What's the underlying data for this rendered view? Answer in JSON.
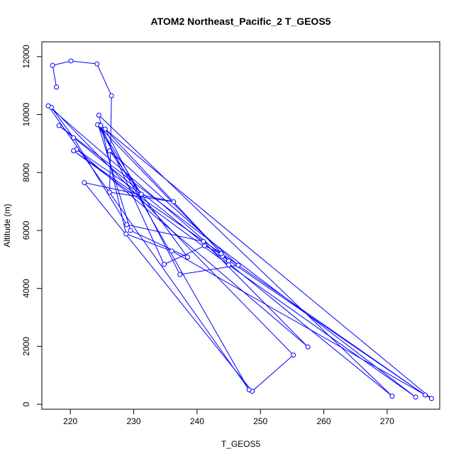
{
  "chart_data": {
    "type": "line",
    "title": "ATOM2 Northeast_Pacific_2 T_GEOS5",
    "xlabel": "T_GEOS5",
    "ylabel": "Altitude (m)",
    "xlim": [
      215.5,
      278.3
    ],
    "ylim": [
      -170,
      12510
    ],
    "xticks": [
      220,
      230,
      240,
      250,
      260,
      270
    ],
    "yticks": [
      0,
      2000,
      4000,
      6000,
      8000,
      10000,
      12000
    ],
    "series_color": "#0000FF",
    "series": [
      {
        "markers": "open-circle",
        "x": [
          217.8,
          217.2,
          220.1,
          224.2,
          226.5,
          226.2,
          236.3,
          222.2,
          248.7,
          255.2,
          217.0,
          220.5,
          228.9,
          241.0,
          257.5,
          221.0,
          231.2,
          224.4,
          229.5,
          238.5,
          226.2,
          246.5,
          237.3,
          225.5,
          245.0,
          224.3,
          248.2,
          216.5,
          244.0,
          276.0,
          220.5,
          245.0,
          274.5,
          218.2,
          270.8,
          224.5,
          228.8,
          236.0,
          277.0,
          224.8,
          234.8,
          241.2,
          243.8
        ],
        "y": [
          10950,
          11700,
          11850,
          11750,
          10650,
          7320,
          6990,
          7650,
          450,
          1700,
          10250,
          9200,
          6200,
          5620,
          1980,
          8800,
          7250,
          9650,
          6000,
          5080,
          8750,
          4800,
          4480,
          9500,
          4950,
          9650,
          500,
          10300,
          5110,
          320,
          8750,
          4810,
          250,
          9620,
          280,
          9980,
          5880,
          5290,
          200,
          9620,
          4830,
          5470,
          5200
        ]
      }
    ]
  }
}
